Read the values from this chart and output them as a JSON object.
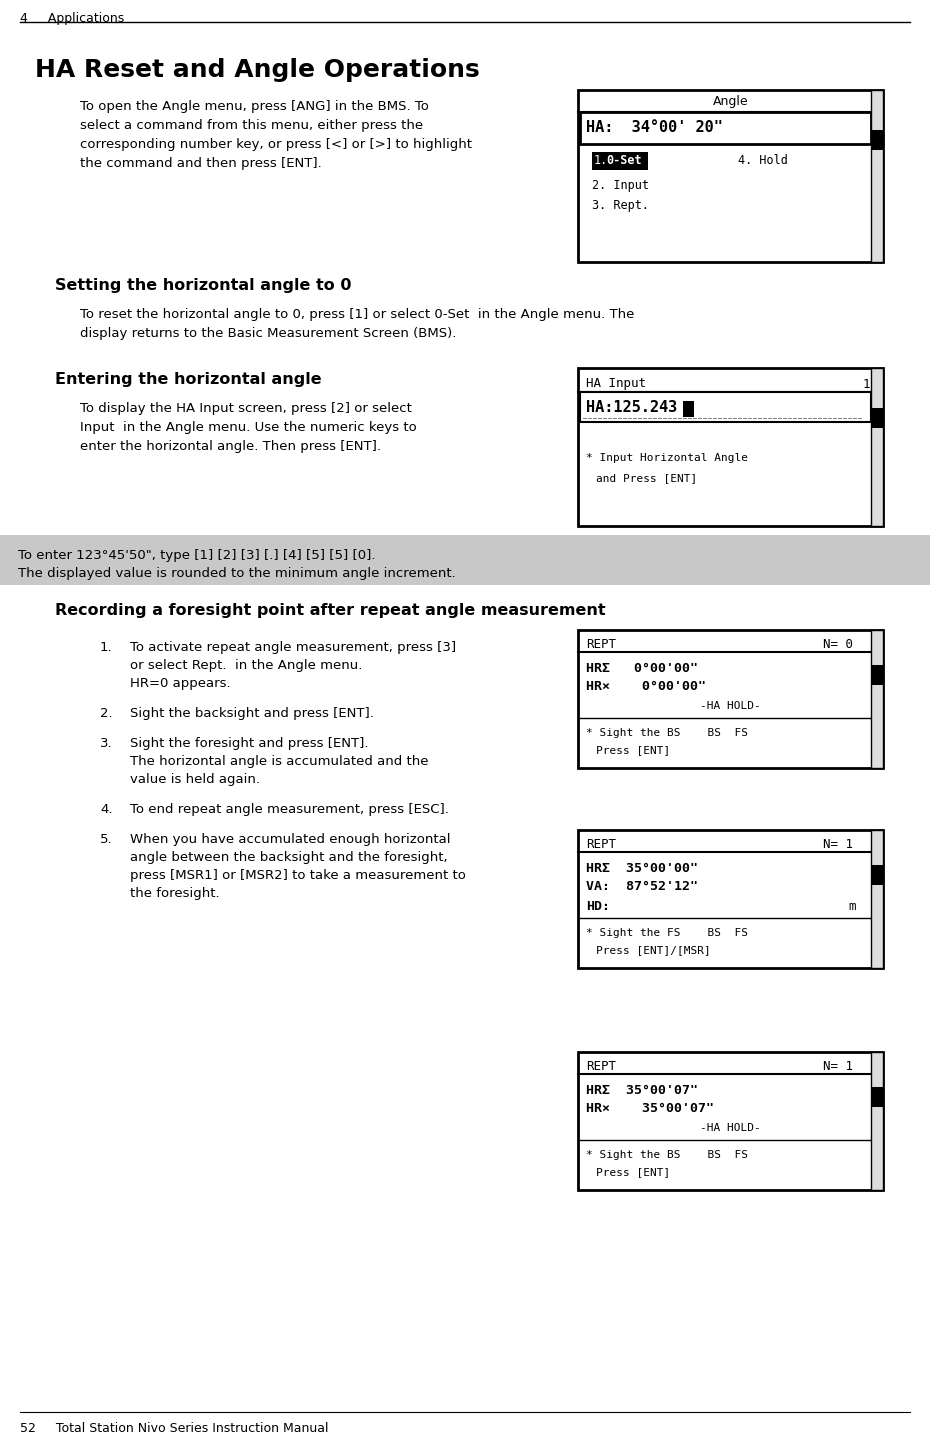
{
  "page_header_left": "4     Applications",
  "page_footer_left": "52     Total Station Nivo Series Instruction Manual",
  "main_title": "HA Reset and Angle Operations",
  "bg_color": "#ffffff",
  "section1_title": "Setting the horizontal angle to 0",
  "section2_title": "Entering the horizontal angle",
  "section3_title": "Recording a foresight point after repeat angle measurement",
  "note_text_line1": "To enter 123°45'50\", type [1] [2] [3] [.] [4] [5] [5] [0].",
  "note_text_line2": "The displayed value is rounded to the minimum angle increment."
}
